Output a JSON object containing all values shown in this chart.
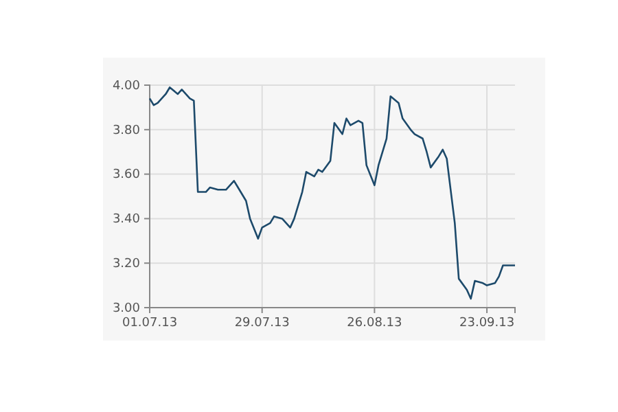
{
  "chart_data": {
    "type": "line",
    "x": [
      "2013-07-01",
      "2013-07-02",
      "2013-07-03",
      "2013-07-05",
      "2013-07-06",
      "2013-07-08",
      "2013-07-09",
      "2013-07-11",
      "2013-07-12",
      "2013-07-13",
      "2013-07-15",
      "2013-07-16",
      "2013-07-18",
      "2013-07-20",
      "2013-07-22",
      "2013-07-23",
      "2013-07-25",
      "2013-07-26",
      "2013-07-28",
      "2013-07-29",
      "2013-07-31",
      "2013-08-01",
      "2013-08-03",
      "2013-08-05",
      "2013-08-06",
      "2013-08-08",
      "2013-08-09",
      "2013-08-11",
      "2013-08-12",
      "2013-08-13",
      "2013-08-15",
      "2013-08-16",
      "2013-08-18",
      "2013-08-19",
      "2013-08-20",
      "2013-08-22",
      "2013-08-23",
      "2013-08-24",
      "2013-08-26",
      "2013-08-27",
      "2013-08-29",
      "2013-08-30",
      "2013-09-01",
      "2013-09-02",
      "2013-09-04",
      "2013-09-05",
      "2013-09-07",
      "2013-09-08",
      "2013-09-09",
      "2013-09-11",
      "2013-09-12",
      "2013-09-13",
      "2013-09-15",
      "2013-09-16",
      "2013-09-18",
      "2013-09-19",
      "2013-09-20",
      "2013-09-22",
      "2013-09-23",
      "2013-09-25",
      "2013-09-26",
      "2013-09-27",
      "2013-09-30"
    ],
    "series": [
      {
        "color": "#1d4a6b",
        "values": [
          3.94,
          3.91,
          3.92,
          3.96,
          3.99,
          3.96,
          3.98,
          3.94,
          3.93,
          3.52,
          3.52,
          3.54,
          3.53,
          3.53,
          3.57,
          3.54,
          3.48,
          3.4,
          3.31,
          3.36,
          3.38,
          3.41,
          3.4,
          3.36,
          3.4,
          3.52,
          3.61,
          3.59,
          3.62,
          3.61,
          3.66,
          3.83,
          3.78,
          3.85,
          3.82,
          3.84,
          3.83,
          3.64,
          3.55,
          3.64,
          3.76,
          3.95,
          3.92,
          3.85,
          3.8,
          3.78,
          3.76,
          3.7,
          3.63,
          3.68,
          3.71,
          3.67,
          3.38,
          3.13,
          3.08,
          3.04,
          3.12,
          3.11,
          3.1,
          3.11,
          3.14,
          3.19,
          3.19
        ]
      }
    ],
    "xlim": [
      "2013-07-01",
      "2013-09-30"
    ],
    "xticks": [
      {
        "value": "2013-07-01",
        "label": "01.07.13"
      },
      {
        "value": "2013-07-29",
        "label": "29.07.13"
      },
      {
        "value": "2013-08-26",
        "label": "26.08.13"
      },
      {
        "value": "2013-09-23",
        "label": "23.09.13"
      }
    ],
    "ylim": [
      3,
      4
    ],
    "yticks": [
      {
        "value": 3,
        "label": "3.00"
      },
      {
        "value": 3.2,
        "label": "3.20"
      },
      {
        "value": 3.4,
        "label": "3.40"
      },
      {
        "value": 3.6,
        "label": "3.60"
      },
      {
        "value": 3.8,
        "label": "3.80"
      },
      {
        "value": 4,
        "label": "4.00"
      }
    ],
    "grid": true,
    "line_style": "solid"
  }
}
